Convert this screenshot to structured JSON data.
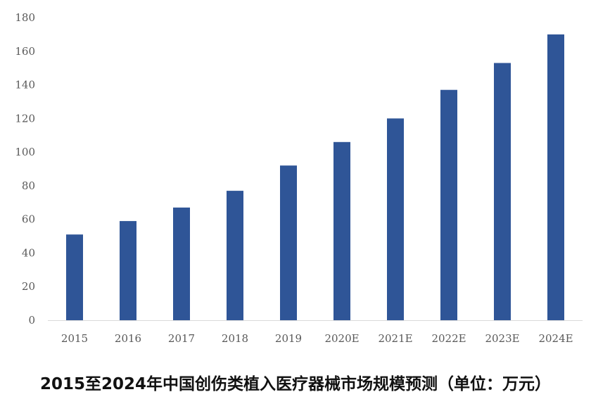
{
  "chart_data": {
    "type": "bar",
    "title": "2015至2024年中国创伤类植入医疗器械市场规模预测（单位：万元）",
    "categories": [
      "2015",
      "2016",
      "2017",
      "2018",
      "2019",
      "2020E",
      "2021E",
      "2022E",
      "2023E",
      "2024E"
    ],
    "series": [
      {
        "values": [
          51,
          59,
          67,
          77,
          92,
          106,
          120,
          137,
          153,
          170
        ],
        "color": "#2F5597"
      }
    ],
    "ylim": [
      0,
      180
    ],
    "yticks": [
      0,
      20,
      40,
      60,
      80,
      100,
      120,
      140,
      160,
      180
    ],
    "xlabel": "",
    "ylabel": "",
    "grid": false,
    "legend": "none"
  }
}
